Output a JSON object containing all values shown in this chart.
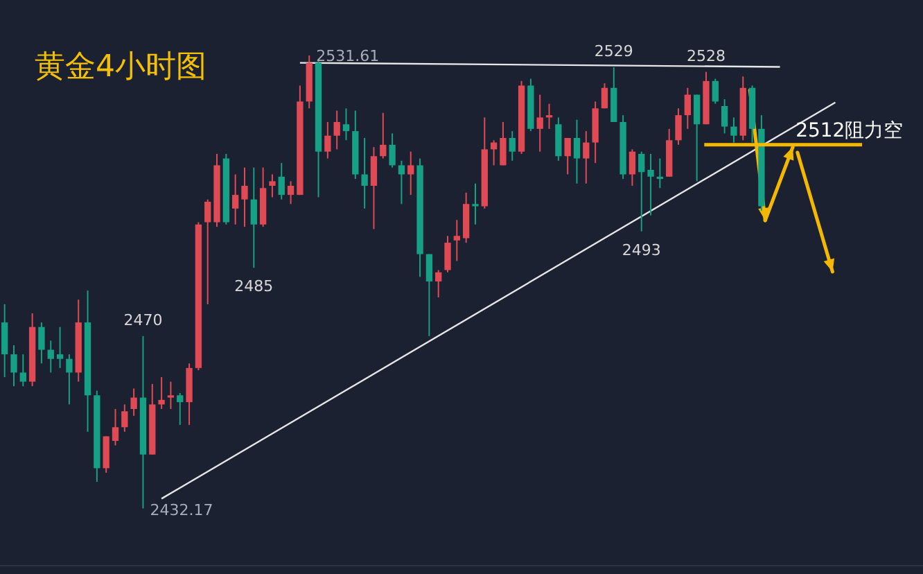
{
  "chart_data": {
    "type": "candlestick",
    "title": "黄金4小时图",
    "categories": [
      null,
      null,
      null,
      null,
      null,
      null,
      null,
      null,
      null,
      null,
      null,
      null,
      null,
      null,
      null,
      null,
      null,
      null,
      null,
      null,
      null,
      null,
      null,
      null,
      null,
      null,
      null,
      null,
      null,
      null,
      null,
      null,
      null,
      null,
      null,
      null,
      null,
      null,
      null,
      null,
      null,
      null,
      null,
      null,
      null,
      null,
      null,
      null,
      null,
      null,
      null,
      null,
      null,
      null,
      null,
      null,
      null,
      null,
      null,
      null,
      null,
      null,
      null,
      null,
      null,
      null,
      null,
      null,
      null,
      null,
      null,
      null,
      null,
      null,
      null,
      null,
      null,
      null,
      null,
      null,
      null,
      null,
      null,
      null,
      null,
      null,
      null,
      null,
      null,
      null,
      null,
      null,
      null,
      null,
      null,
      null,
      null,
      null,
      null,
      null
    ],
    "ohlc": [
      [
        2473,
        2477,
        2461,
        2466
      ],
      [
        2466,
        2468,
        2459,
        2462
      ],
      [
        2462,
        2466,
        2459,
        2460
      ],
      [
        2460,
        2475,
        2459,
        2472
      ],
      [
        2472,
        2473,
        2464,
        2467
      ],
      [
        2467,
        2469,
        2462,
        2465
      ],
      [
        2466,
        2472,
        2463,
        2465
      ],
      [
        2465,
        2466,
        2455,
        2462
      ],
      [
        2462,
        2478,
        2460,
        2473
      ],
      [
        2473,
        2480,
        2449,
        2457
      ],
      [
        2457,
        2458,
        2438,
        2441
      ],
      [
        2441,
        2448,
        2440,
        2448
      ],
      [
        2447,
        2454,
        2446,
        2450
      ],
      [
        2450,
        2455,
        2449,
        2453.5
      ],
      [
        2454,
        2458.5,
        2452.5,
        2456.5
      ],
      [
        2456.5,
        2470,
        2432.17,
        2444
      ],
      [
        2444,
        2459.5,
        2444,
        2455
      ],
      [
        2455,
        2461,
        2454,
        2456
      ],
      [
        2456.5,
        2460,
        2454,
        2457
      ],
      [
        2457,
        2457.5,
        2450.5,
        2455.5
      ],
      [
        2455.5,
        2464,
        2450.5,
        2463
      ],
      [
        2463,
        2495,
        2462.5,
        2494.5
      ],
      [
        2495,
        2500,
        2477,
        2499.5
      ],
      [
        2495,
        2510,
        2494,
        2507.5
      ],
      [
        2509,
        2510,
        2494.5,
        2495
      ],
      [
        2498,
        2505.5,
        2494.5,
        2501
      ],
      [
        2500,
        2507,
        2494,
        2503
      ],
      [
        2500,
        2507,
        2485,
        2494.5
      ],
      [
        2494.5,
        2507,
        2494,
        2502.5
      ],
      [
        2503,
        2505.5,
        2500.5,
        2504
      ],
      [
        2505,
        2508,
        2500,
        2501
      ],
      [
        2501,
        2504,
        2499,
        2503
      ],
      [
        2501,
        2525,
        2501,
        2521.5
      ],
      [
        2521.5,
        2531.61,
        2520,
        2530
      ],
      [
        2530,
        2530.5,
        2500.5,
        2510.5
      ],
      [
        2510.5,
        2517,
        2509,
        2514
      ],
      [
        2514,
        2519.5,
        2511,
        2517
      ],
      [
        2516.5,
        2520,
        2513,
        2515
      ],
      [
        2515,
        2519.5,
        2504.5,
        2505.5
      ],
      [
        2505.5,
        2513.5,
        2498,
        2503
      ],
      [
        2503,
        2511.5,
        2493.5,
        2509.5
      ],
      [
        2509.5,
        2519,
        2509,
        2512
      ],
      [
        2512,
        2514.5,
        2507,
        2507.5
      ],
      [
        2507.5,
        2508.5,
        2499,
        2505.5
      ],
      [
        2505.5,
        2510.5,
        2501,
        2507.5
      ],
      [
        2507.5,
        2509,
        2483,
        2488
      ],
      [
        2488,
        2488,
        2470,
        2482
      ],
      [
        2482,
        2484.5,
        2478.5,
        2484
      ],
      [
        2484.5,
        2492,
        2484,
        2490.5
      ],
      [
        2491,
        2495.5,
        2486.5,
        2492
      ],
      [
        2491.5,
        2501.5,
        2490.5,
        2499
      ],
      [
        2499,
        2503.5,
        2494.5,
        2498.5
      ],
      [
        2498.5,
        2518,
        2498,
        2511
      ],
      [
        2511,
        2513,
        2507.5,
        2512.5
      ],
      [
        2507.5,
        2517,
        2507.5,
        2513.5
      ],
      [
        2513.5,
        2515,
        2508.5,
        2510.5
      ],
      [
        2510.5,
        2526,
        2510,
        2525
      ],
      [
        2525,
        2526.5,
        2515,
        2515.5
      ],
      [
        2515.5,
        2523,
        2510.5,
        2518
      ],
      [
        2518,
        2521,
        2515.5,
        2518.5
      ],
      [
        2516.5,
        2518,
        2508.5,
        2509.5
      ],
      [
        2509.5,
        2513.5,
        2505.5,
        2513.5
      ],
      [
        2513.5,
        2517.5,
        2503.5,
        2509
      ],
      [
        2509,
        2515,
        2503.5,
        2512.5
      ],
      [
        2512.5,
        2521.5,
        2508,
        2520
      ],
      [
        2520,
        2525.5,
        2520,
        2524.5
      ],
      [
        2524.5,
        2529,
        2517,
        2517
      ],
      [
        2517,
        2518.5,
        2504.5,
        2505.5
      ],
      [
        2505.5,
        2511,
        2503,
        2510.5
      ],
      [
        2510,
        2510.5,
        2493,
        2506
      ],
      [
        2506.5,
        2510,
        2496.5,
        2505
      ],
      [
        2505,
        2509,
        2502.5,
        2504.5
      ],
      [
        2505,
        2515.5,
        2505,
        2513
      ],
      [
        2513,
        2520,
        2512,
        2518.5
      ],
      [
        2518.5,
        2524.5,
        2515.5,
        2523
      ],
      [
        2523,
        2523,
        2504,
        2516.5
      ],
      [
        2516.5,
        2528,
        2516.5,
        2526
      ],
      [
        2526,
        2526.5,
        2521,
        2521.5
      ],
      [
        2520.5,
        2522,
        2514.5,
        2516
      ],
      [
        2516,
        2518,
        2512.5,
        2514
      ],
      [
        2514,
        2527,
        2513,
        2524.5
      ],
      [
        2524.5,
        2525,
        2512.5,
        2515.5
      ],
      [
        2515.5,
        2518.5,
        2497.5,
        2498.5
      ],
      null,
      null,
      null,
      null,
      null,
      null,
      null,
      null,
      null,
      null,
      null,
      null,
      null,
      null,
      null,
      null,
      null
    ],
    "series": [
      {
        "type": "line",
        "color": "#e6e6e6",
        "values": [
          null,
          null,
          null,
          null,
          null,
          null,
          null,
          null,
          null,
          null,
          null,
          null,
          null,
          null,
          null,
          null,
          null,
          null,
          null,
          null,
          null,
          null,
          null,
          null,
          null,
          null,
          null,
          null,
          null,
          null,
          null,
          null,
          2530,
          null,
          null,
          null,
          null,
          null,
          null,
          null,
          null,
          null,
          null,
          null,
          null,
          null,
          null,
          null,
          null,
          null,
          null,
          null,
          null,
          null,
          null,
          null,
          null,
          null,
          null,
          null,
          null,
          null,
          null,
          null,
          null,
          null,
          null,
          null,
          null,
          null,
          null,
          null,
          null,
          null,
          null,
          null,
          null,
          null,
          null,
          null,
          null,
          null,
          null,
          null,
          2529.1,
          null,
          null,
          null,
          null,
          null,
          null,
          null,
          null,
          null,
          null,
          null,
          null,
          null,
          null,
          null
        ]
      },
      {
        "type": "line",
        "color": "#e6e6e6",
        "values": [
          null,
          null,
          null,
          null,
          null,
          null,
          null,
          null,
          null,
          null,
          null,
          null,
          null,
          null,
          null,
          null,
          null,
          2434.3,
          null,
          null,
          null,
          null,
          null,
          null,
          null,
          null,
          null,
          null,
          null,
          null,
          null,
          null,
          null,
          null,
          null,
          null,
          null,
          null,
          null,
          null,
          null,
          null,
          null,
          null,
          null,
          null,
          null,
          null,
          null,
          null,
          null,
          null,
          null,
          null,
          null,
          null,
          null,
          null,
          null,
          null,
          null,
          null,
          null,
          null,
          null,
          null,
          null,
          null,
          null,
          null,
          null,
          null,
          null,
          null,
          null,
          null,
          null,
          null,
          null,
          null,
          null,
          null,
          null,
          null,
          null,
          null,
          null,
          null,
          null,
          null,
          2521.3,
          null,
          null,
          null,
          null,
          null,
          null,
          null,
          null,
          null
        ]
      }
    ],
    "ref_lines": [
      {
        "axis": "y",
        "value": 2512,
        "label": "2512阻力空",
        "color": "#f5b800"
      }
    ],
    "annotations": [
      "2531.61",
      {
        "text": "2529",
        "y": 2529
      },
      {
        "text": "2528",
        "y": 2528
      },
      {
        "text": "2485",
        "y": 2485
      },
      {
        "text": "2470",
        "y": 2470
      },
      {
        "text": "2493",
        "y": 2493
      },
      "2432.17"
    ]
  }
}
